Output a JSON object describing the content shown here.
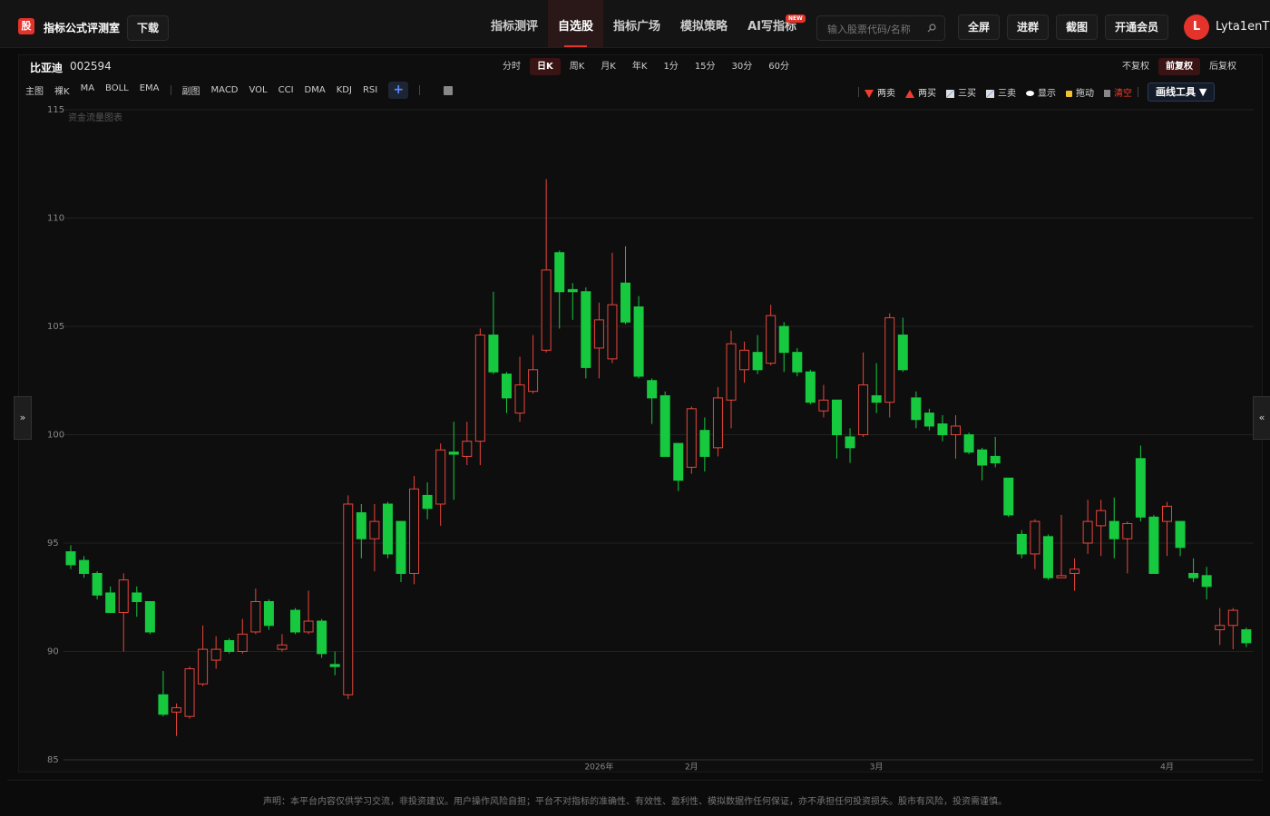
{
  "header": {
    "logo": "股",
    "title": "指标公式评测室",
    "download": "下载",
    "nav": [
      "指标测评",
      "自选股",
      "指标广场",
      "模拟策略",
      "AI写指标"
    ],
    "nav_badge": "NEW",
    "search_placeholder": "输入股票代码/名称",
    "buttons": [
      "全屏",
      "进群",
      "截图",
      "开通会员"
    ],
    "avatar": "L",
    "user": "Lyta1enT"
  },
  "toolbar": {
    "stock_name": "比亚迪",
    "stock_code": "002594",
    "periods": [
      "分时",
      "日K",
      "周K",
      "月K",
      "年K",
      "1分",
      "15分",
      "30分",
      "60分"
    ],
    "adjust": [
      "不复权",
      "前复权",
      "后复权"
    ],
    "main_label": "主图",
    "main_indicators": [
      "裸K",
      "MA",
      "BOLL",
      "EMA"
    ],
    "sub_label": "副图",
    "sub_indicators": [
      "MACD",
      "VOL",
      "CCI",
      "DMA",
      "KDJ",
      "RSI"
    ],
    "add": "+",
    "tools": [
      "两卖",
      "两买",
      "三买",
      "三卖",
      "显示",
      "拖动",
      "清空"
    ],
    "draw_tool": "画线工具 ▼"
  },
  "side_handles": [
    "»",
    "«"
  ],
  "chart_data": {
    "type": "candlestick",
    "annotation": "资金流量图表",
    "categories": [
      null,
      null,
      null,
      null,
      null,
      null,
      null,
      null,
      null,
      null,
      null,
      null,
      null,
      null,
      null,
      null,
      null,
      null,
      null,
      null,
      null,
      null,
      null,
      null,
      null,
      null,
      null,
      null,
      null,
      null,
      null,
      null,
      null,
      null,
      null,
      null,
      null,
      null,
      null,
      null,
      "2026年",
      null,
      null,
      null,
      null,
      null,
      null,
      "2月",
      null,
      null,
      null,
      null,
      null,
      null,
      null,
      null,
      null,
      null,
      null,
      null,
      null,
      "3月",
      null,
      null,
      null,
      null,
      null,
      null,
      null,
      null,
      null,
      null,
      null,
      null,
      null,
      null,
      null,
      null,
      null,
      null,
      null,
      null,
      null,
      "4月",
      null,
      null,
      null,
      null,
      null,
      null
    ],
    "open": [
      94.6,
      94.2,
      93.6,
      92.7,
      91.8,
      92.7,
      92.3,
      88.0,
      87.2,
      87.0,
      88.5,
      89.6,
      90.5,
      90.0,
      90.9,
      92.3,
      90.1,
      91.9,
      90.9,
      91.4,
      89.4,
      88.0,
      96.4,
      95.2,
      96.8,
      96.0,
      93.6,
      97.2,
      96.8,
      99.2,
      99.0,
      99.7,
      104.6,
      102.8,
      101.0,
      102.0,
      103.9,
      108.4,
      106.7,
      106.6,
      104.0,
      103.5,
      107.0,
      105.9,
      102.5,
      101.8,
      99.6,
      98.5,
      100.2,
      99.4,
      101.6,
      103.0,
      103.8,
      103.3,
      105.0,
      103.8,
      102.9,
      101.1,
      101.6,
      99.9,
      100.0,
      101.8,
      101.5,
      104.6,
      101.7,
      101.0,
      100.5,
      100.0,
      100.0,
      99.3,
      99.0,
      98.0,
      95.4,
      94.5,
      95.3,
      93.4,
      93.6,
      95.0,
      95.8,
      96.0,
      95.2,
      98.9,
      96.2,
      96.0,
      96.0,
      93.6,
      93.5,
      91.0,
      91.2,
      91.0
    ],
    "high": [
      94.9,
      94.4,
      93.7,
      93.0,
      93.6,
      93.0,
      92.3,
      89.1,
      87.6,
      89.3,
      91.2,
      90.7,
      90.6,
      91.5,
      92.9,
      92.4,
      90.8,
      92.0,
      92.8,
      91.5,
      90.0,
      97.2,
      96.8,
      96.8,
      96.9,
      96.0,
      98.1,
      97.8,
      99.6,
      100.6,
      100.6,
      104.9,
      106.6,
      102.9,
      103.6,
      104.6,
      111.8,
      108.5,
      107.0,
      106.8,
      106.1,
      108.4,
      108.7,
      106.4,
      102.6,
      102.0,
      99.6,
      101.3,
      100.8,
      102.2,
      104.8,
      104.3,
      104.6,
      106.0,
      105.2,
      104.0,
      103.0,
      102.3,
      101.6,
      100.3,
      103.8,
      103.3,
      105.6,
      105.4,
      102.0,
      101.2,
      100.9,
      100.9,
      100.1,
      99.4,
      99.9,
      98.0,
      95.6,
      96.1,
      95.4,
      96.3,
      94.3,
      97.0,
      97.0,
      97.1,
      96.0,
      99.5,
      96.3,
      96.9,
      96.0,
      94.3,
      93.9,
      92.0,
      92.0,
      91.1
    ],
    "low": [
      93.8,
      93.4,
      92.4,
      91.8,
      90.0,
      91.6,
      90.8,
      87.0,
      86.1,
      86.9,
      88.4,
      89.2,
      89.9,
      89.9,
      90.8,
      91.0,
      90.0,
      90.8,
      90.8,
      89.7,
      88.9,
      87.8,
      94.3,
      93.7,
      94.3,
      93.2,
      93.1,
      96.1,
      95.8,
      97.0,
      98.6,
      98.6,
      102.8,
      101.0,
      100.6,
      101.9,
      103.8,
      104.9,
      105.3,
      102.6,
      102.6,
      103.3,
      105.1,
      102.6,
      100.5,
      99.0,
      97.4,
      98.2,
      98.3,
      99.0,
      100.3,
      102.4,
      102.8,
      103.2,
      102.9,
      102.7,
      101.4,
      100.8,
      98.9,
      98.7,
      99.9,
      101.0,
      100.8,
      102.9,
      100.3,
      100.2,
      99.7,
      98.9,
      99.1,
      97.9,
      98.5,
      96.2,
      94.3,
      93.8,
      93.3,
      93.4,
      92.8,
      94.5,
      94.4,
      94.3,
      93.6,
      96.0,
      93.6,
      94.4,
      94.4,
      93.2,
      92.4,
      90.3,
      90.1,
      90.2
    ],
    "close": [
      94.0,
      93.6,
      92.6,
      91.8,
      93.3,
      92.3,
      90.9,
      87.1,
      87.4,
      89.2,
      90.1,
      90.1,
      90.0,
      90.8,
      92.3,
      91.2,
      90.3,
      90.9,
      91.4,
      89.9,
      89.3,
      96.8,
      95.2,
      96.0,
      94.5,
      93.6,
      97.5,
      96.6,
      99.3,
      99.1,
      99.7,
      104.6,
      102.9,
      101.7,
      102.3,
      103.0,
      107.6,
      106.6,
      106.6,
      103.1,
      105.3,
      106.0,
      105.2,
      102.7,
      101.7,
      99.0,
      97.9,
      101.2,
      99.0,
      101.7,
      104.2,
      103.9,
      103.0,
      105.5,
      103.8,
      102.9,
      101.5,
      101.6,
      100.0,
      99.4,
      102.3,
      101.5,
      105.4,
      103.0,
      100.7,
      100.4,
      100.0,
      100.4,
      99.2,
      98.6,
      98.7,
      96.3,
      94.5,
      96.0,
      93.4,
      93.5,
      93.8,
      96.0,
      96.5,
      95.2,
      95.9,
      96.2,
      93.6,
      96.7,
      94.8,
      93.4,
      93.0,
      91.2,
      91.9,
      90.4
    ],
    "ylim": [
      85,
      115
    ],
    "yticks": [
      85,
      90,
      95,
      100,
      105,
      110,
      115
    ],
    "grid": true,
    "up_color": "#e8453c",
    "down_color": "#16c93f"
  },
  "footer": {
    "disclaimer": "声明：本平台内容仅供学习交流，非投资建议。用户操作风险自担；平台不对指标的准确性、有效性、盈利性、模拟数据作任何保证，亦不承担任何投资损失。股市有风险，投资需谨慎。"
  }
}
